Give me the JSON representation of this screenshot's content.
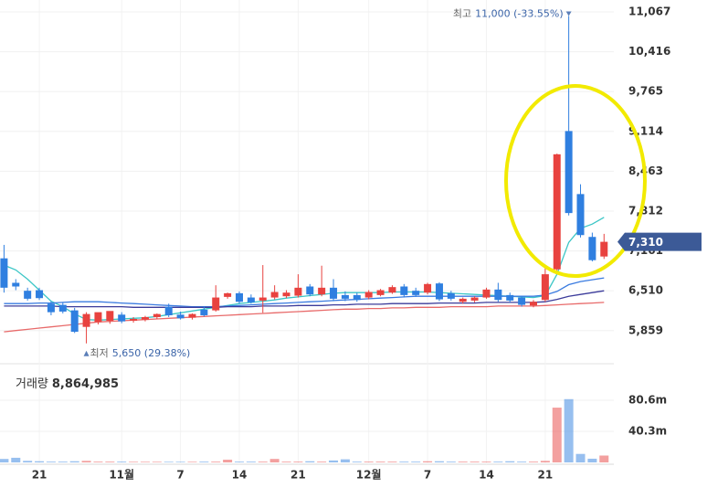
{
  "chart_data": {
    "type": "candlestick",
    "categories": [
      null,
      null,
      null,
      "21",
      null,
      null,
      null,
      null,
      null,
      null,
      "11월",
      null,
      null,
      null,
      null,
      "7",
      null,
      null,
      null,
      null,
      "14",
      null,
      null,
      null,
      null,
      "21",
      null,
      null,
      null,
      null,
      null,
      "12월",
      null,
      null,
      null,
      null,
      "7",
      null,
      null,
      null,
      null,
      "14",
      null,
      null,
      null,
      null,
      "21",
      null,
      null,
      null,
      null,
      null
    ],
    "open": [
      7040,
      6640,
      6510,
      6520,
      6300,
      6280,
      6190,
      5920,
      6000,
      6020,
      6120,
      6020,
      6040,
      6080,
      6250,
      6120,
      6070,
      6200,
      6190,
      6410,
      6470,
      6400,
      6350,
      6400,
      6420,
      6430,
      6580,
      6450,
      6560,
      6440,
      6440,
      6400,
      6440,
      6480,
      6580,
      6510,
      6480,
      6630,
      6470,
      6330,
      6350,
      6400,
      6530,
      6440,
      6400,
      6270,
      6360,
      6860,
      9120,
      8090,
      7390,
      7070
    ],
    "high": [
      7260,
      6700,
      6560,
      6560,
      6340,
      6320,
      6230,
      6160,
      6130,
      6130,
      6160,
      6080,
      6100,
      6140,
      6300,
      6170,
      6140,
      6260,
      6600,
      6480,
      6500,
      6450,
      6930,
      6600,
      6520,
      6780,
      6620,
      6920,
      6700,
      6500,
      6480,
      6520,
      6540,
      6600,
      6620,
      6560,
      6640,
      6650,
      6510,
      6400,
      6420,
      6560,
      6640,
      6480,
      6430,
      6360,
      6890,
      8750,
      11000,
      8250,
      7460,
      7440
    ],
    "low": [
      6480,
      6520,
      6350,
      6360,
      6110,
      6140,
      5820,
      5650,
      5960,
      5970,
      5980,
      5990,
      6010,
      6050,
      6080,
      6040,
      6040,
      6090,
      6170,
      6380,
      6300,
      6300,
      6150,
      6370,
      6390,
      6400,
      6420,
      6420,
      6340,
      6340,
      6330,
      6370,
      6420,
      6460,
      6400,
      6410,
      6450,
      6340,
      6350,
      6300,
      6320,
      6380,
      6330,
      6320,
      6250,
      6240,
      6330,
      6800,
      7740,
      7380,
      6990,
      7030
    ],
    "close": [
      6560,
      6580,
      6380,
      6390,
      6160,
      6170,
      5840,
      6130,
      6160,
      6180,
      6010,
      6050,
      6080,
      6130,
      6110,
      6060,
      6130,
      6110,
      6400,
      6470,
      6330,
      6320,
      6400,
      6490,
      6480,
      6560,
      6450,
      6560,
      6380,
      6380,
      6360,
      6490,
      6520,
      6570,
      6440,
      6440,
      6620,
      6370,
      6380,
      6380,
      6400,
      6530,
      6360,
      6350,
      6280,
      6330,
      6780,
      8740,
      7780,
      7420,
      7010,
      7310
    ],
    "colors": {
      "up": "#e8423f",
      "down": "#2f7fe0"
    },
    "ylim": [
      5363,
      11261
    ],
    "yticks": [
      {
        "value": 5859,
        "label": "5,859"
      },
      {
        "value": 6510,
        "label": "6,510"
      },
      {
        "value": 7161,
        "label": "7,161"
      },
      {
        "value": 7812,
        "label": "7,812"
      },
      {
        "value": 8463,
        "label": "8,463"
      },
      {
        "value": 9114,
        "label": "9,114"
      },
      {
        "value": 9765,
        "label": "9,765"
      },
      {
        "value": 10416,
        "label": "10,416"
      },
      {
        "value": 11067,
        "label": "11,067"
      }
    ],
    "grid": true,
    "ma_lines": [
      {
        "color": "#3cc6c6",
        "values": [
          6930,
          6850,
          6700,
          6520,
          6340,
          6250,
          6130,
          6040,
          6030,
          6040,
          6050,
          6060,
          6070,
          6090,
          6120,
          6150,
          6180,
          6210,
          6240,
          6270,
          6300,
          6320,
          6340,
          6360,
          6390,
          6410,
          6430,
          6450,
          6470,
          6480,
          6480,
          6480,
          6480,
          6490,
          6490,
          6490,
          6490,
          6480,
          6470,
          6460,
          6450,
          6440,
          6430,
          6420,
          6410,
          6400,
          6430,
          6780,
          7300,
          7530,
          7600,
          7710
        ]
      },
      {
        "color": "#3a7be0",
        "values": [
          6300,
          6300,
          6300,
          6310,
          6310,
          6320,
          6330,
          6330,
          6330,
          6320,
          6310,
          6300,
          6290,
          6280,
          6270,
          6260,
          6250,
          6250,
          6250,
          6260,
          6270,
          6280,
          6290,
          6300,
          6310,
          6320,
          6330,
          6340,
          6350,
          6360,
          6370,
          6380,
          6390,
          6400,
          6410,
          6420,
          6420,
          6420,
          6420,
          6420,
          6420,
          6420,
          6420,
          6420,
          6420,
          6420,
          6440,
          6500,
          6610,
          6660,
          6690,
          6720
        ]
      },
      {
        "color": "#3b3b9a",
        "values": [
          6260,
          6260,
          6260,
          6260,
          6260,
          6250,
          6250,
          6250,
          6250,
          6250,
          6250,
          6240,
          6240,
          6240,
          6240,
          6240,
          6240,
          6240,
          6240,
          6250,
          6250,
          6250,
          6260,
          6260,
          6260,
          6270,
          6270,
          6270,
          6280,
          6280,
          6290,
          6290,
          6290,
          6300,
          6300,
          6300,
          6300,
          6310,
          6310,
          6310,
          6310,
          6320,
          6320,
          6320,
          6320,
          6320,
          6330,
          6370,
          6420,
          6450,
          6480,
          6510
        ]
      },
      {
        "color": "#e86a6a",
        "values": [
          5840,
          5860,
          5880,
          5900,
          5920,
          5940,
          5960,
          5980,
          6000,
          6010,
          6020,
          6030,
          6040,
          6050,
          6060,
          6070,
          6080,
          6090,
          6100,
          6110,
          6120,
          6130,
          6140,
          6150,
          6160,
          6170,
          6180,
          6190,
          6200,
          6210,
          6210,
          6220,
          6220,
          6230,
          6230,
          6240,
          6240,
          6240,
          6250,
          6250,
          6250,
          6250,
          6260,
          6260,
          6260,
          6260,
          6270,
          6280,
          6290,
          6300,
          6310,
          6320
        ]
      }
    ],
    "annotations": {
      "high": {
        "title": "최고",
        "text": "11,000 (-33.55%)"
      },
      "low": {
        "title": "최저",
        "text": "5,650 (29.38%)"
      },
      "last_price": "7,310"
    },
    "volume": {
      "title": "거래량",
      "last_text": "8,864,985",
      "values": [
        4.5,
        6,
        2,
        1.5,
        1,
        1,
        1.5,
        2,
        1,
        1,
        1,
        0.8,
        0.8,
        0.8,
        0.8,
        0.8,
        0.8,
        1,
        1,
        3.5,
        1,
        1,
        1,
        4.5,
        1,
        1,
        1.5,
        1,
        2.5,
        4,
        1,
        1,
        1,
        1,
        1,
        1,
        1.5,
        1.5,
        1,
        1,
        1,
        1,
        1,
        1.5,
        1,
        1,
        2,
        71,
        82,
        11,
        4.8,
        8.9
      ],
      "ylim": [
        0,
        122
      ],
      "yticks": [
        {
          "value": 40.3,
          "label": "40.3m"
        },
        {
          "value": 80.6,
          "label": "80.6m"
        }
      ]
    }
  }
}
